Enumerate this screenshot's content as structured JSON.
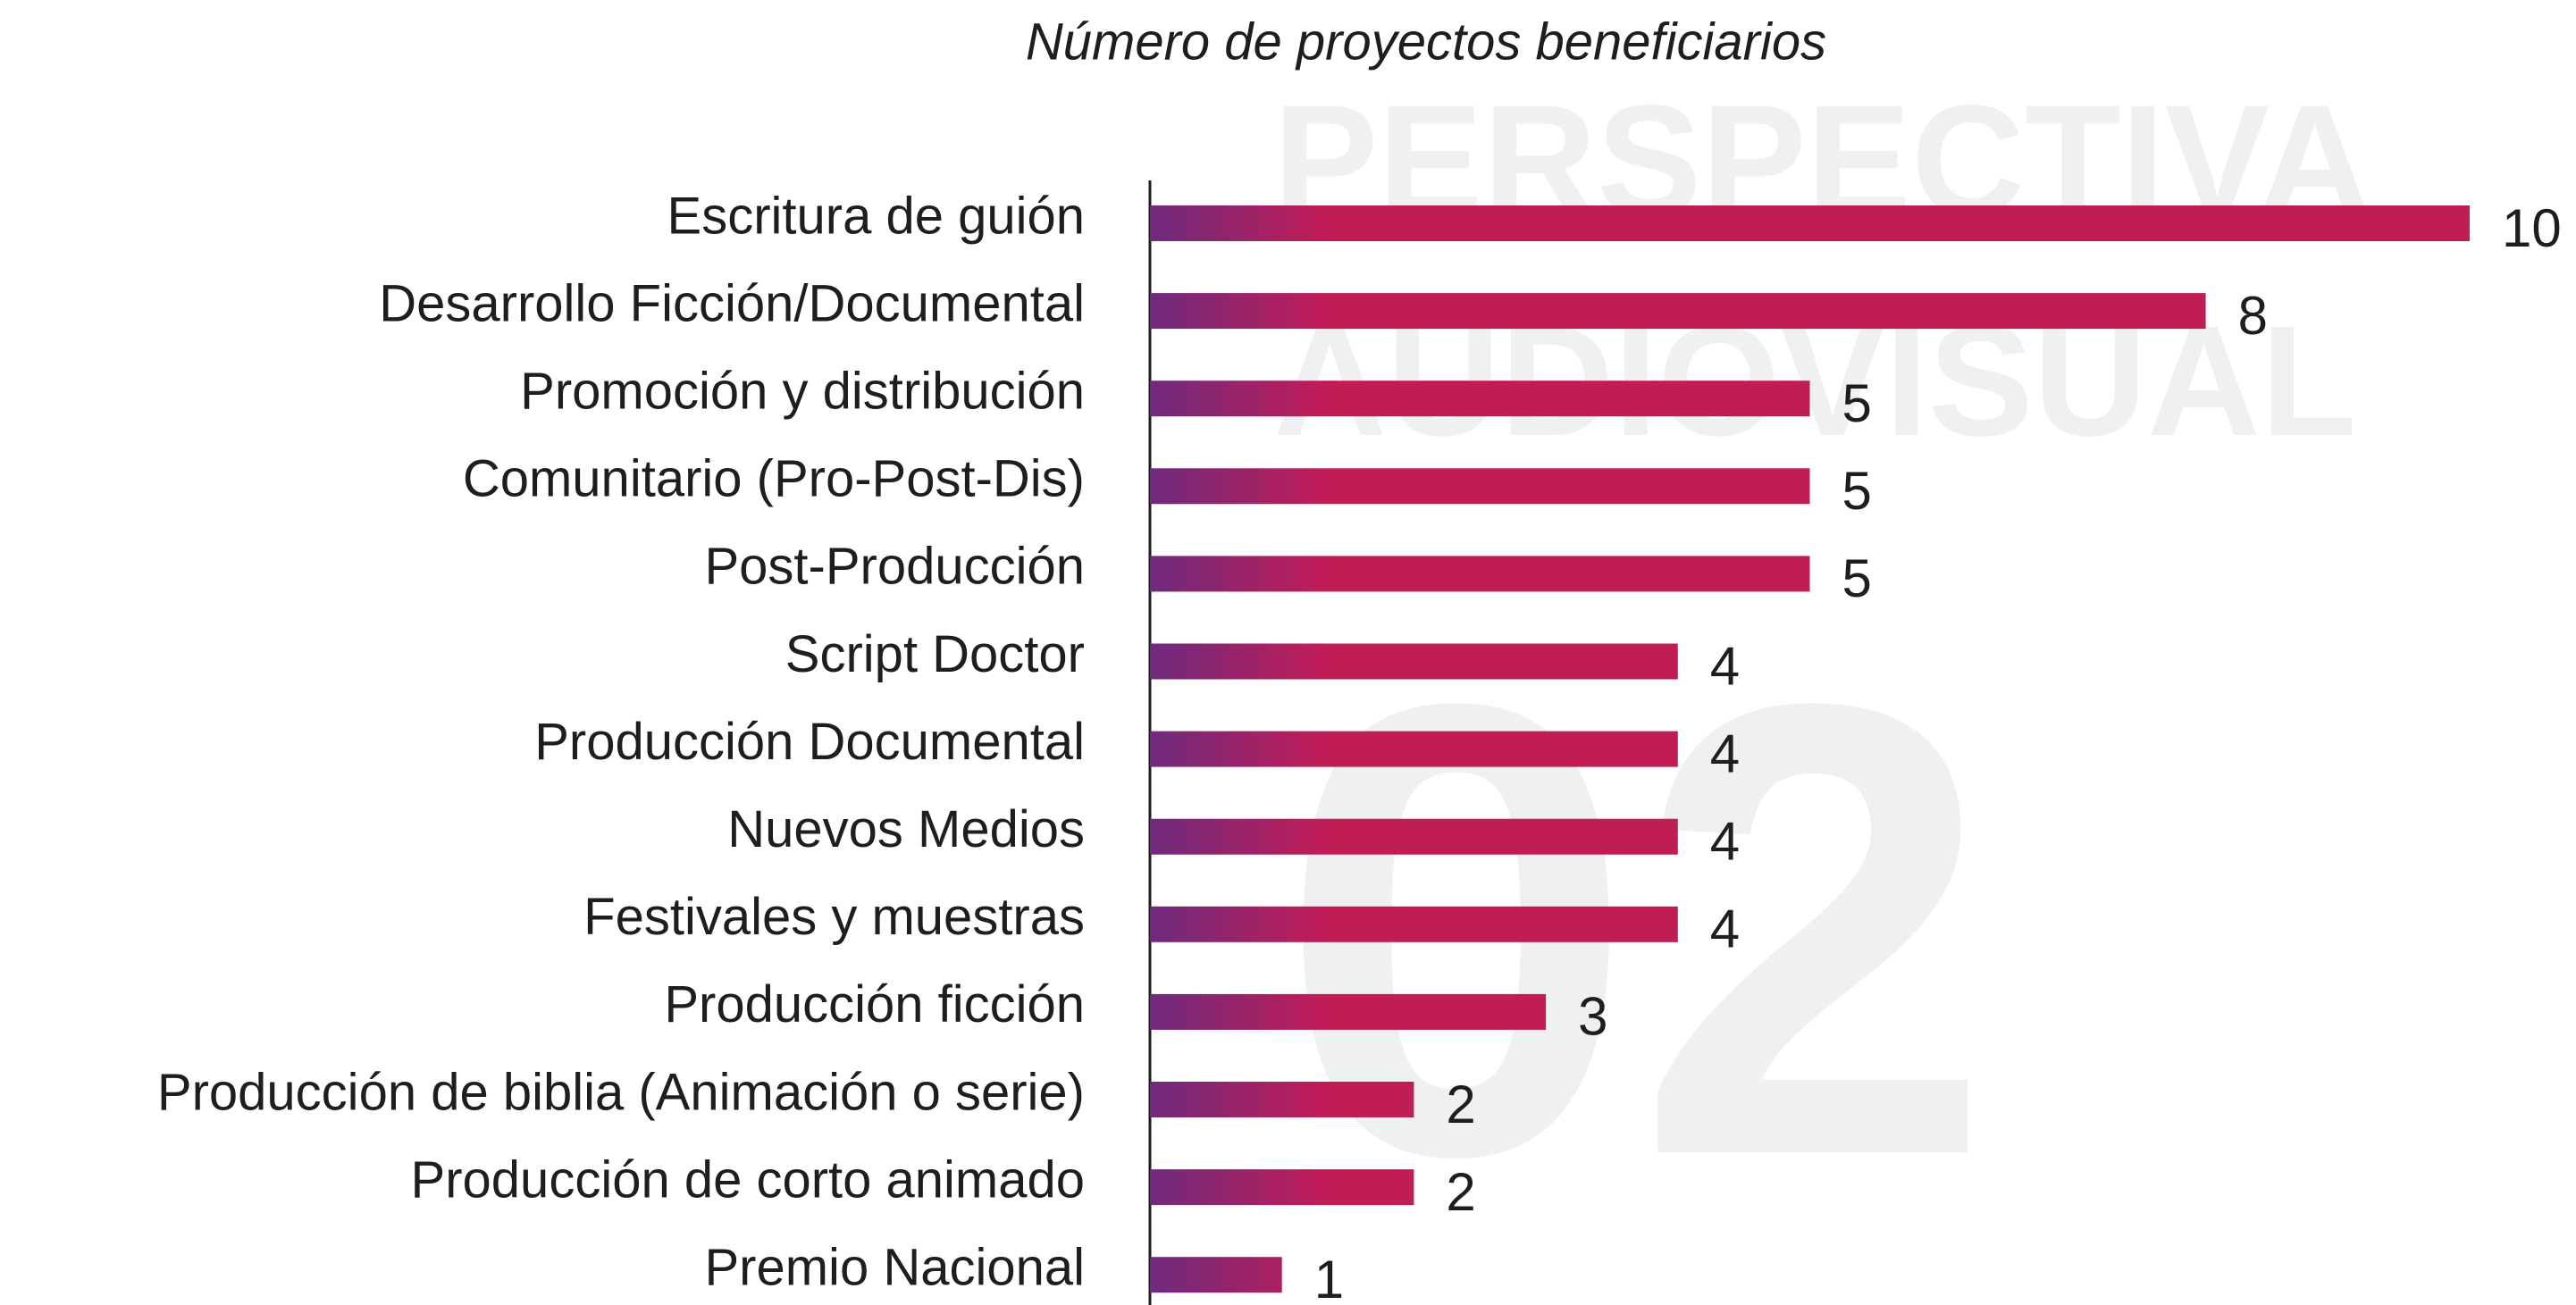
{
  "chart_data": {
    "type": "hbar",
    "title": "Número de proyectos beneficiarios",
    "watermark": [
      "PERSPECTIVA",
      "AUDIOVISUAL",
      "02"
    ],
    "categories": [
      "Escritura de guión",
      "Desarrollo Ficción/Documental",
      "Promoción y distribución",
      "Comunitario (Pro-Post-Dis)",
      "Post-Producción",
      "Script Doctor",
      "Producción Documental",
      "Nuevos Medios",
      "Festivales y muestras",
      "Producción ficción",
      "Producción de biblia (Animación o serie)",
      "Producción de corto animado",
      "Premio Nacional"
    ],
    "values": [
      10,
      8,
      5,
      5,
      5,
      4,
      4,
      4,
      4,
      3,
      2,
      2,
      1
    ],
    "xlim": [
      0,
      10
    ],
    "color": "#c01d57",
    "gradient_start": "#6e2a7e"
  }
}
